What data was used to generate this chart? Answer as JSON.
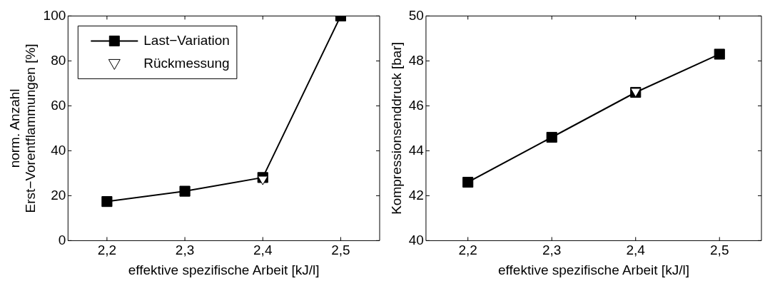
{
  "chart_data": [
    {
      "type": "line",
      "xlabel": "effektive spezifische Arbeit [kJ/l]",
      "ylabel": "norm. Anzahl\nErst−Vorentflammungen [%]",
      "x": [
        2.2,
        2.3,
        2.4,
        2.5
      ],
      "series": [
        {
          "name": "Last−Variation",
          "color": "#000000",
          "values": [
            17.4,
            22,
            28.1,
            100
          ],
          "marker": "square",
          "line_style": "solid"
        },
        {
          "name": "Rückmessung",
          "type": "scatter",
          "color": "#000000",
          "x": [
            2.4
          ],
          "values": [
            27.4
          ],
          "marker": "triangle"
        }
      ],
      "xlim": [
        2.15,
        2.55
      ],
      "xticks": [
        {
          "value": 2.2,
          "label": "2,2"
        },
        {
          "value": 2.3,
          "label": "2,3"
        },
        {
          "value": 2.4,
          "label": "2,4"
        },
        {
          "value": 2.5,
          "label": "2,5"
        }
      ],
      "ylim": [
        0,
        100
      ],
      "yticks": [
        0,
        20,
        40,
        60,
        80,
        100
      ],
      "legend": "top left"
    },
    {
      "type": "line",
      "xlabel": "effektive spezifische Arbeit [kJ/l]",
      "ylabel": "Kompressionsenddruck [bar]",
      "x": [
        2.2,
        2.3,
        2.4,
        2.5
      ],
      "series": [
        {
          "color": "#000000",
          "values": [
            42.6,
            44.6,
            46.6,
            48.3
          ],
          "marker": "square",
          "line_style": "solid"
        },
        {
          "type": "scatter",
          "color": "#000000",
          "x": [
            2.4
          ],
          "values": [
            46.65
          ],
          "marker": "triangle"
        }
      ],
      "xlim": [
        2.15,
        2.55
      ],
      "xticks": [
        {
          "value": 2.2,
          "label": "2,2"
        },
        {
          "value": 2.3,
          "label": "2,3"
        },
        {
          "value": 2.4,
          "label": "2,4"
        },
        {
          "value": 2.5,
          "label": "2,5"
        }
      ],
      "ylim": [
        40,
        50
      ],
      "yticks": [
        40,
        42,
        44,
        46,
        48,
        50
      ]
    }
  ]
}
